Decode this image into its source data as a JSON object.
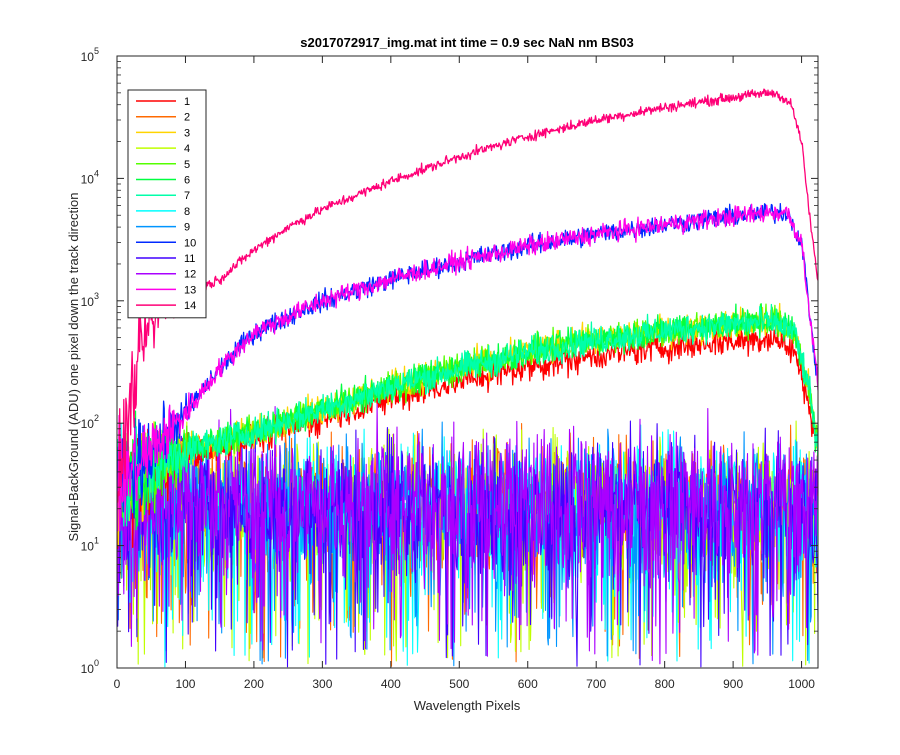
{
  "chart_data": {
    "type": "line",
    "title": "s2017072917_img.mat int time = 0.9 sec  NaN nm BS03",
    "xlabel": "Wavelength Pixels",
    "ylabel": "Signal-BackGround (ADU) one pixel down the track direction",
    "xlim": [
      0,
      1024
    ],
    "ylim": [
      1,
      100000
    ],
    "yscale": "log",
    "x_ticks": [
      "0",
      "100",
      "200",
      "300",
      "400",
      "500",
      "600",
      "700",
      "800",
      "900",
      "1000"
    ],
    "y_ticks": [
      {
        "base": "10",
        "exp": "0"
      },
      {
        "base": "10",
        "exp": "1"
      },
      {
        "base": "10",
        "exp": "2"
      },
      {
        "base": "10",
        "exp": "3"
      },
      {
        "base": "10",
        "exp": "4"
      },
      {
        "base": "10",
        "exp": "5"
      }
    ],
    "legend_position": "top-left",
    "grid": false,
    "series": [
      {
        "name": "1",
        "color": "#ff0000",
        "group": "mid_low",
        "key_points": [
          [
            0,
            30
          ],
          [
            100,
            55
          ],
          [
            200,
            75
          ],
          [
            300,
            110
          ],
          [
            400,
            160
          ],
          [
            500,
            220
          ],
          [
            600,
            290
          ],
          [
            700,
            360
          ],
          [
            800,
            420
          ],
          [
            900,
            470
          ],
          [
            960,
            500
          ],
          [
            990,
            380
          ],
          [
            1010,
            150
          ],
          [
            1024,
            60
          ]
        ]
      },
      {
        "name": "2",
        "color": "#ff6a00",
        "group": "noise",
        "key_points": [
          [
            0,
            25
          ],
          [
            1024,
            25
          ]
        ]
      },
      {
        "name": "3",
        "color": "#ffd400",
        "group": "mid_high",
        "key_points": [
          [
            0,
            32
          ],
          [
            100,
            60
          ],
          [
            200,
            85
          ],
          [
            300,
            130
          ],
          [
            400,
            200
          ],
          [
            500,
            280
          ],
          [
            600,
            380
          ],
          [
            700,
            480
          ],
          [
            800,
            570
          ],
          [
            900,
            650
          ],
          [
            960,
            700
          ],
          [
            990,
            550
          ],
          [
            1010,
            200
          ],
          [
            1024,
            60
          ]
        ]
      },
      {
        "name": "4",
        "color": "#c0ff00",
        "group": "noise",
        "key_points": [
          [
            0,
            25
          ],
          [
            1024,
            25
          ]
        ]
      },
      {
        "name": "5",
        "color": "#55ff00",
        "group": "mid_high",
        "key_points": [
          [
            0,
            32
          ],
          [
            100,
            60
          ],
          [
            200,
            85
          ],
          [
            300,
            130
          ],
          [
            400,
            200
          ],
          [
            500,
            280
          ],
          [
            600,
            380
          ],
          [
            700,
            480
          ],
          [
            800,
            570
          ],
          [
            900,
            650
          ],
          [
            960,
            690
          ],
          [
            990,
            550
          ],
          [
            1010,
            200
          ],
          [
            1024,
            60
          ]
        ]
      },
      {
        "name": "6",
        "color": "#00ff40",
        "group": "mid_high",
        "key_points": [
          [
            0,
            32
          ],
          [
            100,
            60
          ],
          [
            200,
            85
          ],
          [
            300,
            130
          ],
          [
            400,
            200
          ],
          [
            500,
            280
          ],
          [
            600,
            380
          ],
          [
            700,
            480
          ],
          [
            800,
            570
          ],
          [
            900,
            650
          ],
          [
            960,
            680
          ],
          [
            990,
            550
          ],
          [
            1010,
            200
          ],
          [
            1024,
            60
          ]
        ]
      },
      {
        "name": "7",
        "color": "#00ffaa",
        "group": "mid_high",
        "key_points": [
          [
            0,
            32
          ],
          [
            100,
            60
          ],
          [
            200,
            85
          ],
          [
            300,
            130
          ],
          [
            400,
            200
          ],
          [
            500,
            280
          ],
          [
            600,
            380
          ],
          [
            700,
            480
          ],
          [
            800,
            570
          ],
          [
            900,
            650
          ],
          [
            960,
            670
          ],
          [
            990,
            550
          ],
          [
            1010,
            200
          ],
          [
            1024,
            60
          ]
        ]
      },
      {
        "name": "8",
        "color": "#00ffff",
        "group": "noise",
        "key_points": [
          [
            0,
            25
          ],
          [
            1024,
            25
          ]
        ]
      },
      {
        "name": "9",
        "color": "#0095ff",
        "group": "noise",
        "key_points": [
          [
            0,
            25
          ],
          [
            1024,
            25
          ]
        ]
      },
      {
        "name": "10",
        "color": "#002aff",
        "group": "high",
        "key_points": [
          [
            0,
            30
          ],
          [
            50,
            60
          ],
          [
            100,
            120
          ],
          [
            150,
            280
          ],
          [
            200,
            550
          ],
          [
            300,
            1000
          ],
          [
            400,
            1500
          ],
          [
            500,
            2100
          ],
          [
            600,
            2800
          ],
          [
            700,
            3500
          ],
          [
            800,
            4200
          ],
          [
            900,
            4900
          ],
          [
            960,
            5300
          ],
          [
            980,
            5200
          ],
          [
            1000,
            3000
          ],
          [
            1010,
            1000
          ],
          [
            1024,
            200
          ]
        ]
      },
      {
        "name": "11",
        "color": "#4000ff",
        "group": "noise",
        "key_points": [
          [
            0,
            25
          ],
          [
            1024,
            25
          ]
        ]
      },
      {
        "name": "12",
        "color": "#aa00ff",
        "group": "noise",
        "key_points": [
          [
            0,
            25
          ],
          [
            1024,
            25
          ]
        ]
      },
      {
        "name": "13",
        "color": "#ff00ea",
        "group": "high",
        "key_points": [
          [
            0,
            30
          ],
          [
            50,
            60
          ],
          [
            100,
            120
          ],
          [
            150,
            280
          ],
          [
            200,
            550
          ],
          [
            300,
            1000
          ],
          [
            400,
            1500
          ],
          [
            500,
            2100
          ],
          [
            600,
            2800
          ],
          [
            700,
            3500
          ],
          [
            800,
            4200
          ],
          [
            900,
            4900
          ],
          [
            960,
            5300
          ],
          [
            980,
            5200
          ],
          [
            1000,
            3000
          ],
          [
            1010,
            1000
          ],
          [
            1024,
            200
          ]
        ]
      },
      {
        "name": "14",
        "color": "#ff0077",
        "group": "top",
        "key_points": [
          [
            0,
            30
          ],
          [
            20,
            150
          ],
          [
            40,
            500
          ],
          [
            60,
            800
          ],
          [
            100,
            1100
          ],
          [
            150,
            1500
          ],
          [
            200,
            2600
          ],
          [
            250,
            4000
          ],
          [
            300,
            5600
          ],
          [
            400,
            9500
          ],
          [
            500,
            15000
          ],
          [
            600,
            22000
          ],
          [
            700,
            30000
          ],
          [
            800,
            38000
          ],
          [
            900,
            46000
          ],
          [
            950,
            50000
          ],
          [
            965,
            49000
          ],
          [
            985,
            40000
          ],
          [
            1000,
            20000
          ],
          [
            1010,
            6000
          ],
          [
            1024,
            1400
          ]
        ]
      }
    ]
  }
}
